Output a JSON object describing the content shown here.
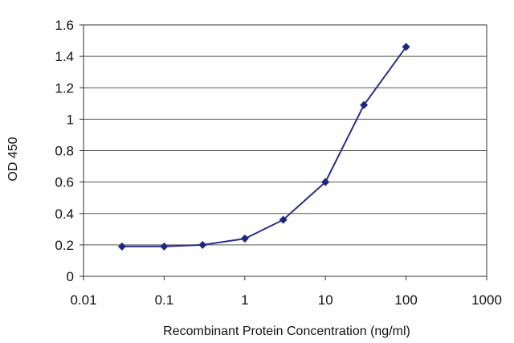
{
  "chart_data": {
    "type": "line",
    "title": "",
    "xlabel": "Recombinant Protein Concentration (ng/ml)",
    "ylabel": "OD 450",
    "x_scale": "log",
    "xlim": [
      0.01,
      1000
    ],
    "ylim": [
      0,
      1.6
    ],
    "x_ticks": [
      "0.01",
      "0.1",
      "1",
      "10",
      "100",
      "1000"
    ],
    "y_ticks": [
      "0",
      "0.2",
      "0.4",
      "0.6",
      "0.8",
      "1",
      "1.2",
      "1.4",
      "1.6"
    ],
    "grid": "horizontal",
    "series": [
      {
        "x": [
          0.03,
          0.1,
          0.3,
          1,
          3,
          10,
          30,
          100
        ],
        "y": [
          0.19,
          0.19,
          0.2,
          0.24,
          0.36,
          0.6,
          1.09,
          1.46
        ]
      }
    ],
    "colors": {
      "line": "#2b2f8f",
      "marker": "#1f2680",
      "grid": "#555555",
      "axis": "#333333"
    }
  }
}
